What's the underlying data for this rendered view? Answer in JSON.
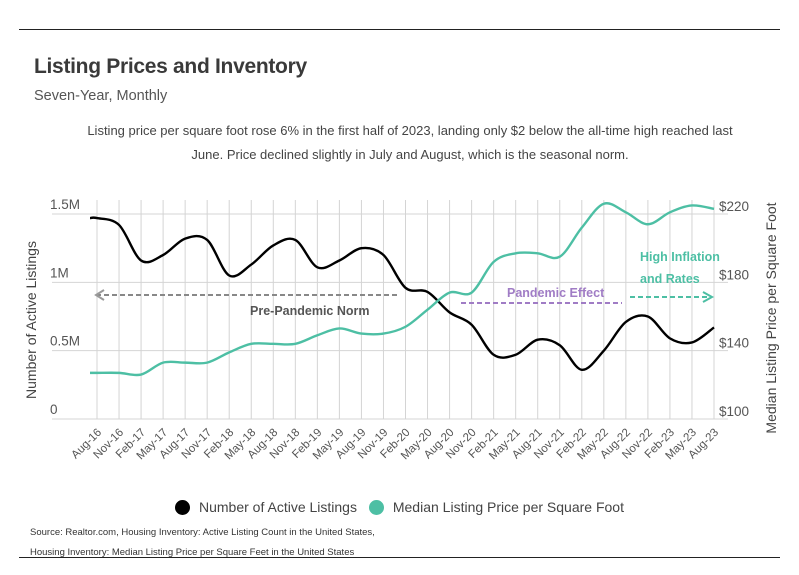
{
  "title": "Listing Prices and Inventory",
  "subtitle": "Seven-Year, Monthly",
  "description": "Listing price per square foot rose 6% in the first half of 2023, landing only $2 below the all-time high reached last June.  Price declined slightly in July and August, which is the seasonal norm.",
  "legend": [
    {
      "label": "Number of Active Listings",
      "color": "#000000"
    },
    {
      "label": "Median Listing Price per Square Foot",
      "color": "#4dbfa4"
    }
  ],
  "source": [
    "Source:  Realtor.com, Housing Inventory: Active Listing Count in the United States,",
    "Housing Inventory: Median Listing Price per Square Feet in the United States"
  ],
  "chart_data": {
    "type": "line",
    "title": "Listing Prices and Inventory",
    "subtitle": "Seven-Year, Monthly",
    "x": [
      "Aug-16",
      "Nov-16",
      "Feb-17",
      "May-17",
      "Aug-17",
      "Nov-17",
      "Feb-18",
      "May-18",
      "Aug-18",
      "Nov-18",
      "Feb-19",
      "May-19",
      "Aug-19",
      "Nov-19",
      "Feb-20",
      "May-20",
      "Aug-20",
      "Nov-20",
      "Feb-21",
      "May-21",
      "Aug-21",
      "Nov-21",
      "Feb-22",
      "May-22",
      "Aug-22",
      "Nov-22",
      "Feb-23",
      "May-23",
      "Aug-23"
    ],
    "series": [
      {
        "name": "Number of Active Listings",
        "axis": "left",
        "color": "#000000",
        "values": [
          1470000,
          1420000,
          1160000,
          1200000,
          1320000,
          1310000,
          1050000,
          1130000,
          1270000,
          1310000,
          1110000,
          1160000,
          1250000,
          1200000,
          960000,
          930000,
          780000,
          690000,
          470000,
          470000,
          580000,
          540000,
          360000,
          500000,
          710000,
          750000,
          590000,
          560000,
          670000
        ]
      },
      {
        "name": "Median Listing Price per Square Foot",
        "axis": "right",
        "color": "#4dbfa4",
        "values": [
          127,
          127,
          126,
          133,
          133,
          133,
          139,
          144,
          144,
          144,
          149,
          153,
          150,
          150,
          154,
          164,
          174,
          174,
          192,
          197,
          197,
          195,
          212,
          226,
          221,
          214,
          221,
          225,
          223
        ]
      }
    ],
    "ylabel_left": "Number of Active Listings",
    "ylabel_right": "Median Listing Price per Square Foot",
    "ylim_left": [
      0,
      1500000
    ],
    "ylim_right": [
      100,
      220
    ],
    "yticks_left": [
      "0",
      "0.5M",
      "1M",
      "1.5M"
    ],
    "yticks_right": [
      "$100",
      "$140",
      "$180",
      "$220"
    ],
    "grid": true,
    "legend_position": "bottom",
    "annotations": [
      {
        "text": "Pre-Pandemic Norm",
        "color": "#808080",
        "range": [
          "Aug-16",
          "Feb-20"
        ],
        "arrow": "left"
      },
      {
        "text": "Pandemic Effect",
        "color": "#a07cc5",
        "range": [
          "Nov-20",
          "Aug-22"
        ],
        "arrow": "none"
      },
      {
        "text": "High Inflation and Rates",
        "color": "#4dbfa4",
        "range": [
          "Aug-22",
          "Aug-23"
        ],
        "arrow": "right"
      }
    ]
  }
}
